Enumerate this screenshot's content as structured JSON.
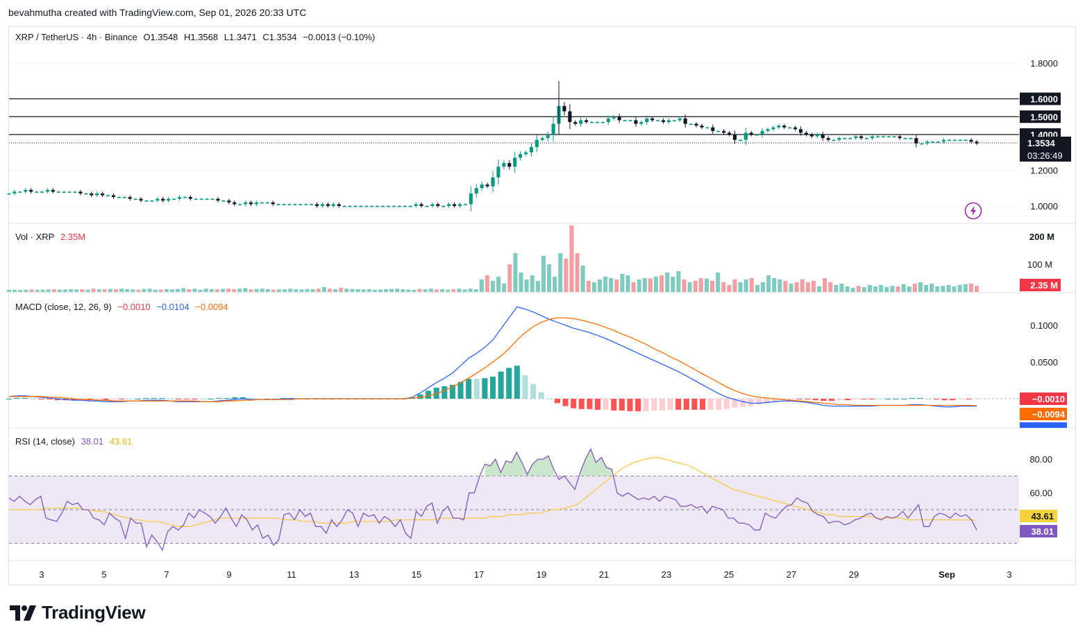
{
  "attribution": "bevahmutha created with TradingView.com, Sep 01, 2026 20:33 UTC",
  "symbol_title": "XRP / TetherUS · 4h · Binance",
  "ohlc": {
    "o": "O1.3548",
    "h": "H1.3568",
    "l": "L1.3471",
    "c": "C1.3534",
    "chg": "−0.0013 (−0.10%)"
  },
  "price_axis": [
    "1.8000",
    "1.6000",
    "1.5000",
    "1.4000",
    "1.2000",
    "1.0000"
  ],
  "price_last_label": "1.3534",
  "countdown": "03:26:49",
  "volume": {
    "title": "Vol · XRP",
    "value": "2.35M",
    "axis": [
      "200 M",
      "100 M"
    ],
    "last_label": "2.35 M"
  },
  "macd": {
    "title": "MACD (close, 12, 26, 9)",
    "hist": "−0.0010",
    "macd": "−0.0104",
    "signal": "−0.0094",
    "axis": [
      "0.1000",
      "0.0500"
    ],
    "label_hist": "−0.0010",
    "label_signal": "−0.0094"
  },
  "rsi": {
    "title": "RSI (14, close)",
    "rsi": "38.01",
    "ma": "43.61",
    "axis": [
      "80.00",
      "60.00"
    ],
    "label_ma": "43.61",
    "label_rsi": "38.01"
  },
  "x_ticks": [
    "3",
    "5",
    "7",
    "9",
    "11",
    "13",
    "15",
    "17",
    "19",
    "21",
    "23",
    "25",
    "27",
    "29",
    "Sep",
    "3"
  ],
  "brand": "TradingView",
  "colors": {
    "up": "#089981",
    "down": "#f23645",
    "vol_up": "#7fcbbf",
    "vol_down": "#f39ea2",
    "macd_line": "#2962ff",
    "signal_line": "#ff6d00",
    "rsi_line": "#7e57c2",
    "rsi_ma": "#f5d33b",
    "rsi_band": "#ede7f6",
    "hlines": "#131722"
  },
  "chart_data": {
    "type": "candlestick",
    "symbol": "XRP/USDT",
    "interval": "4h",
    "x_labels": [
      "3",
      "5",
      "7",
      "9",
      "11",
      "13",
      "15",
      "17",
      "19",
      "21",
      "23",
      "25",
      "27",
      "29",
      "Sep",
      "3"
    ],
    "ylim": [
      0.95,
      1.85
    ],
    "horizontal_levels": [
      1.6,
      1.5,
      1.4
    ],
    "last_price": 1.3534,
    "close_series": [
      1.07,
      1.08,
      1.08,
      1.09,
      1.08,
      1.08,
      1.08,
      1.09,
      1.08,
      1.08,
      1.08,
      1.08,
      1.08,
      1.07,
      1.07,
      1.06,
      1.07,
      1.06,
      1.06,
      1.05,
      1.05,
      1.05,
      1.04,
      1.04,
      1.03,
      1.03,
      1.03,
      1.04,
      1.03,
      1.04,
      1.04,
      1.05,
      1.05,
      1.04,
      1.04,
      1.04,
      1.04,
      1.04,
      1.03,
      1.03,
      1.02,
      1.01,
      1.01,
      1.02,
      1.01,
      1.02,
      1.02,
      1.02,
      1.01,
      1.01,
      1.01,
      1.01,
      1.01,
      1.01,
      1.01,
      1.01,
      1.0,
      1.01,
      1.0,
      1.01,
      1.0,
      1.0,
      1.0,
      1.0,
      1.0,
      1.0,
      1.0,
      1.0,
      1.0,
      1.0,
      1.0,
      1.0,
      1.0,
      1.0,
      1.01,
      1.0,
      1.0,
      1.01,
      1.0,
      1.0,
      1.01,
      1.0,
      1.01,
      1.01,
      1.07,
      1.1,
      1.12,
      1.11,
      1.16,
      1.22,
      1.24,
      1.22,
      1.27,
      1.29,
      1.3,
      1.33,
      1.37,
      1.38,
      1.4,
      1.46,
      1.56,
      1.53,
      1.47,
      1.46,
      1.48,
      1.47,
      1.47,
      1.47,
      1.47,
      1.49,
      1.5,
      1.48,
      1.48,
      1.48,
      1.46,
      1.47,
      1.49,
      1.48,
      1.48,
      1.47,
      1.48,
      1.48,
      1.49,
      1.46,
      1.46,
      1.45,
      1.44,
      1.44,
      1.42,
      1.42,
      1.41,
      1.4,
      1.37,
      1.37,
      1.41,
      1.4,
      1.4,
      1.42,
      1.43,
      1.44,
      1.45,
      1.44,
      1.44,
      1.43,
      1.41,
      1.4,
      1.39,
      1.4,
      1.38,
      1.37,
      1.37,
      1.38,
      1.38,
      1.38,
      1.39,
      1.38,
      1.38,
      1.39,
      1.39,
      1.39,
      1.39,
      1.39,
      1.38,
      1.38,
      1.38,
      1.35,
      1.35,
      1.36,
      1.36,
      1.36,
      1.37,
      1.37,
      1.37,
      1.37,
      1.37,
      1.36,
      1.35
    ],
    "volume_millions": [
      8,
      8,
      7,
      8,
      9,
      8,
      8,
      9,
      10,
      8,
      9,
      10,
      9,
      10,
      8,
      12,
      10,
      9,
      11,
      10,
      12,
      10,
      9,
      8,
      11,
      12,
      8,
      9,
      10,
      9,
      11,
      14,
      10,
      12,
      8,
      12,
      10,
      9,
      11,
      12,
      10,
      12,
      14,
      9,
      11,
      12,
      10,
      8,
      9,
      10,
      12,
      10,
      9,
      11,
      10,
      12,
      18,
      12,
      10,
      15,
      12,
      11,
      10,
      9,
      10,
      8,
      9,
      10,
      11,
      12,
      10,
      9,
      8,
      11,
      10,
      12,
      9,
      10,
      8,
      10,
      12,
      9,
      12,
      10,
      45,
      60,
      40,
      55,
      30,
      100,
      140,
      70,
      45,
      60,
      40,
      130,
      100,
      55,
      140,
      120,
      240,
      140,
      95,
      40,
      35,
      45,
      55,
      50,
      45,
      65,
      60,
      35,
      45,
      50,
      48,
      55,
      60,
      70,
      55,
      75,
      45,
      35,
      40,
      50,
      48,
      40,
      70,
      35,
      25,
      45,
      35,
      45,
      50,
      25,
      35,
      60,
      50,
      45,
      40,
      30,
      35,
      45,
      35,
      40,
      20,
      50,
      35,
      25,
      30,
      20,
      15,
      22,
      18,
      25,
      20,
      25,
      18,
      22,
      20,
      28,
      20,
      30,
      35,
      25,
      30,
      20,
      22,
      25,
      20,
      25,
      28,
      30,
      22
    ],
    "macd_line": [
      0.003,
      0.004,
      0.004,
      0.003,
      0.002,
      0.001,
      0.0,
      -0.001,
      -0.002,
      -0.002,
      -0.003,
      -0.003,
      -0.004,
      -0.004,
      -0.004,
      -0.003,
      -0.003,
      -0.002,
      -0.002,
      -0.002,
      -0.003,
      -0.004,
      -0.004,
      -0.004,
      -0.004,
      -0.004,
      -0.003,
      -0.002,
      -0.001,
      0.0,
      -0.001,
      -0.001,
      -0.001,
      -0.001,
      0.0,
      0.0,
      0.0,
      0.0,
      0.0,
      0.0,
      0.0,
      0.0,
      0.0,
      0.0,
      0.0,
      0.0,
      0.0,
      0.0,
      0.0,
      0.0,
      0.002,
      0.008,
      0.015,
      0.022,
      0.028,
      0.035,
      0.045,
      0.055,
      0.062,
      0.07,
      0.08,
      0.095,
      0.11,
      0.125,
      0.122,
      0.118,
      0.113,
      0.108,
      0.104,
      0.1,
      0.096,
      0.093,
      0.09,
      0.086,
      0.082,
      0.077,
      0.072,
      0.067,
      0.062,
      0.057,
      0.052,
      0.047,
      0.042,
      0.037,
      0.031,
      0.025,
      0.019,
      0.013,
      0.007,
      0.002,
      -0.001,
      -0.004,
      -0.006,
      -0.006,
      -0.005,
      -0.004,
      -0.003,
      -0.003,
      -0.004,
      -0.005,
      -0.007,
      -0.009,
      -0.01,
      -0.01,
      -0.01,
      -0.01,
      -0.01,
      -0.01,
      -0.009,
      -0.009,
      -0.009,
      -0.009,
      -0.008,
      -0.008,
      -0.009,
      -0.01,
      -0.011,
      -0.011,
      -0.01,
      -0.01,
      -0.01
    ],
    "signal_line": [
      0.003,
      0.003,
      0.003,
      0.003,
      0.003,
      0.002,
      0.002,
      0.001,
      0.0,
      -0.001,
      -0.001,
      -0.002,
      -0.002,
      -0.003,
      -0.003,
      -0.003,
      -0.003,
      -0.003,
      -0.003,
      -0.003,
      -0.003,
      -0.003,
      -0.003,
      -0.003,
      -0.004,
      -0.004,
      -0.004,
      -0.003,
      -0.003,
      -0.002,
      -0.002,
      -0.001,
      -0.001,
      -0.001,
      -0.001,
      -0.001,
      0.0,
      0.0,
      0.0,
      0.0,
      0.0,
      0.0,
      0.0,
      0.0,
      0.0,
      0.0,
      0.0,
      0.0,
      0.0,
      0.0,
      0.001,
      0.002,
      0.004,
      0.007,
      0.011,
      0.016,
      0.022,
      0.028,
      0.035,
      0.042,
      0.05,
      0.058,
      0.068,
      0.08,
      0.09,
      0.098,
      0.104,
      0.108,
      0.11,
      0.11,
      0.109,
      0.107,
      0.104,
      0.101,
      0.097,
      0.093,
      0.088,
      0.084,
      0.079,
      0.074,
      0.068,
      0.063,
      0.057,
      0.052,
      0.046,
      0.04,
      0.034,
      0.028,
      0.022,
      0.016,
      0.011,
      0.007,
      0.004,
      0.002,
      0.001,
      0.0,
      -0.001,
      -0.002,
      -0.003,
      -0.004,
      -0.005,
      -0.006,
      -0.007,
      -0.008,
      -0.008,
      -0.009,
      -0.009,
      -0.009,
      -0.009,
      -0.009,
      -0.009,
      -0.009,
      -0.009,
      -0.009,
      -0.009,
      -0.009,
      -0.009,
      -0.009,
      -0.009,
      -0.009,
      -0.0094
    ],
    "rsi": [
      57,
      55,
      58,
      55,
      53,
      56,
      58,
      45,
      44,
      43,
      48,
      55,
      53,
      54,
      50,
      50,
      45,
      44,
      41,
      48,
      45,
      43,
      33,
      45,
      42,
      42,
      28,
      35,
      31,
      26,
      37,
      40,
      38,
      41,
      48,
      45,
      50,
      48,
      46,
      42,
      46,
      51,
      45,
      40,
      47,
      44,
      38,
      41,
      33,
      35,
      29,
      32,
      47,
      48,
      44,
      50,
      46,
      48,
      40,
      40,
      36,
      44,
      40,
      44,
      50,
      48,
      40,
      48,
      46,
      47,
      42,
      46,
      44,
      40,
      44,
      36,
      33,
      49,
      46,
      52,
      54,
      42,
      49,
      52,
      45,
      45,
      44,
      60,
      60,
      70,
      77,
      76,
      80,
      72,
      79,
      78,
      84,
      78,
      71,
      77,
      80,
      80,
      82,
      74,
      68,
      70,
      66,
      62,
      72,
      80,
      86,
      78,
      81,
      75,
      74,
      60,
      58,
      60,
      58,
      56,
      57,
      56,
      58,
      55,
      58,
      57,
      56,
      52,
      52,
      53,
      51,
      52,
      48,
      52,
      51,
      50,
      45,
      45,
      42,
      42,
      41,
      38,
      38,
      48,
      46,
      45,
      49,
      52,
      53,
      57,
      55,
      54,
      49,
      47,
      46,
      42,
      43,
      43,
      41,
      42,
      44,
      45,
      47,
      48,
      45,
      44,
      46,
      45,
      46,
      49,
      45,
      49,
      53,
      40,
      40,
      46,
      48,
      47,
      45,
      48,
      46,
      47,
      44,
      38
    ],
    "rsi_ma": [
      50,
      50,
      50,
      50,
      50,
      50,
      51,
      51,
      51,
      51,
      51,
      51,
      50,
      50,
      49,
      49,
      48,
      47,
      46,
      45,
      44,
      44,
      43,
      43,
      43,
      42,
      41,
      40,
      40,
      40,
      41,
      42,
      43,
      44,
      45,
      45,
      45,
      45,
      45,
      45,
      45,
      45,
      45,
      45,
      44,
      44,
      44,
      43,
      43,
      43,
      42,
      42,
      42,
      42,
      42,
      43,
      43,
      43,
      43,
      43,
      43,
      43,
      44,
      44,
      44,
      44,
      44,
      44,
      44,
      45,
      45,
      45,
      45,
      45,
      45,
      45,
      45,
      46,
      46,
      46,
      47,
      47,
      47,
      48,
      48,
      48,
      49,
      50,
      50,
      51,
      52,
      53,
      56,
      59,
      62,
      65,
      68,
      71,
      74,
      76,
      78,
      79,
      80,
      81,
      81,
      80,
      79,
      78,
      77,
      76,
      74,
      72,
      70,
      68,
      66,
      64,
      62,
      61,
      60,
      59,
      58,
      57,
      56,
      55,
      54,
      53,
      52,
      51,
      50,
      49,
      48,
      47,
      47,
      46,
      46,
      46,
      46,
      46,
      46,
      45,
      45,
      45,
      45,
      45,
      44,
      44,
      44,
      44,
      44,
      44,
      44,
      44,
      44,
      44,
      44,
      43.61
    ],
    "rsi_levels": [
      70,
      50,
      30
    ]
  }
}
